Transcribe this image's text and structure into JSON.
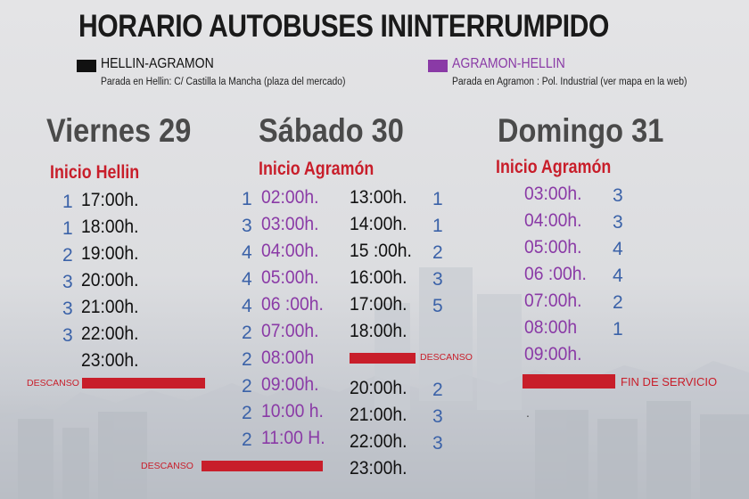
{
  "title": "HORARIO AUTOBUSES ININTERRUMPIDO",
  "colors": {
    "route_black": "#111111",
    "route_purple": "#8a3aa6",
    "red": "#c81e2a",
    "count_blue": "#3b62a8",
    "day_gray": "#4a4a4a"
  },
  "routes": [
    {
      "label": "HELLIN-AGRAMON",
      "stop": "Parada en Hellin: C/ Castilla la Mancha (plaza del mercado)"
    },
    {
      "label": "AGRAMON-HELLIN",
      "stop": "Parada en Agramon : Pol. Industrial (ver mapa en la web)"
    }
  ],
  "viernes": {
    "day": "Viernes 29",
    "inicio": "Inicio Hellin",
    "rows": [
      {
        "n": "1",
        "time": "17:00h."
      },
      {
        "n": "1",
        "time": "18:00h."
      },
      {
        "n": "2",
        "time": "19:00h."
      },
      {
        "n": "3",
        "time": "20:00h."
      },
      {
        "n": "3",
        "time": "21:00h."
      },
      {
        "n": "3",
        "time": "22:00h."
      },
      {
        "n": "",
        "time": "23:00h."
      }
    ],
    "descanso": "DESCANSO"
  },
  "sabado": {
    "day": "Sábado 30",
    "inicio": "Inicio Agramón",
    "col1": [
      {
        "n": "1",
        "time": "02:00h."
      },
      {
        "n": "3",
        "time": "03:00h."
      },
      {
        "n": "4",
        "time": "04:00h."
      },
      {
        "n": "4",
        "time": "05:00h."
      },
      {
        "n": "4",
        "time": "06 :00h."
      },
      {
        "n": "2",
        "time": "07:00h."
      },
      {
        "n": "2",
        "time": "08:00h"
      },
      {
        "n": "2",
        "time": "09:00h."
      },
      {
        "n": "2",
        "time": "10:00 h."
      },
      {
        "n": "2",
        "time": "11:00 H."
      }
    ],
    "col2": [
      {
        "time": "13:00h.",
        "n": "1"
      },
      {
        "time": "14:00h.",
        "n": "1"
      },
      {
        "time": "15 :00h.",
        "n": "2"
      },
      {
        "time": "16:00h.",
        "n": "3"
      },
      {
        "time": "17:00h.",
        "n": "5"
      },
      {
        "time": "18:00h.",
        "n": ""
      }
    ],
    "col2b": [
      {
        "time": "20:00h.",
        "n": "2"
      },
      {
        "time": "21:00h.",
        "n": "3"
      },
      {
        "time": "22:00h.",
        "n": "3"
      },
      {
        "time": "23:00h.",
        "n": ""
      }
    ],
    "descanso_mid": "DESCANSO",
    "descanso_bottom": "DESCANSO"
  },
  "domingo": {
    "day": "Domingo 31",
    "inicio": "Inicio Agramón",
    "rows": [
      {
        "time": "03:00h.",
        "n": "3"
      },
      {
        "time": "04:00h.",
        "n": "3"
      },
      {
        "time": "05:00h.",
        "n": "4"
      },
      {
        "time": "06 :00h.",
        "n": "4"
      },
      {
        "time": "07:00h.",
        "n": "2"
      },
      {
        "time": "08:00h",
        "n": "1"
      },
      {
        "time": "09:00h.",
        "n": ""
      }
    ],
    "fin": "FIN DE SERVICIO",
    "dot": "."
  }
}
